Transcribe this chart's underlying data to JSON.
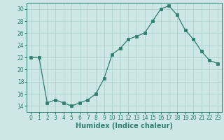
{
  "x": [
    0,
    1,
    2,
    3,
    4,
    5,
    6,
    7,
    8,
    9,
    10,
    11,
    12,
    13,
    14,
    15,
    16,
    17,
    18,
    19,
    20,
    21,
    22,
    23
  ],
  "y": [
    22,
    22,
    14.5,
    15,
    14.5,
    14,
    14.5,
    15,
    16,
    18.5,
    22.5,
    23.5,
    25,
    25.5,
    26,
    28,
    30,
    30.5,
    29,
    26.5,
    25,
    23,
    21.5,
    21
  ],
  "line_color": "#2e7d6e",
  "marker": "s",
  "marker_size": 2.2,
  "bg_color": "#cde8e4",
  "grid_color": "#a8cfc9",
  "xlabel": "Humidex (Indice chaleur)",
  "xlim": [
    -0.5,
    23.5
  ],
  "ylim": [
    13,
    31
  ],
  "yticks": [
    14,
    16,
    18,
    20,
    22,
    24,
    26,
    28,
    30
  ],
  "xticks": [
    0,
    1,
    2,
    3,
    4,
    5,
    6,
    7,
    8,
    9,
    10,
    11,
    12,
    13,
    14,
    15,
    16,
    17,
    18,
    19,
    20,
    21,
    22,
    23
  ],
  "tick_label_size": 5.5,
  "xlabel_size": 7.0,
  "linewidth": 0.9
}
